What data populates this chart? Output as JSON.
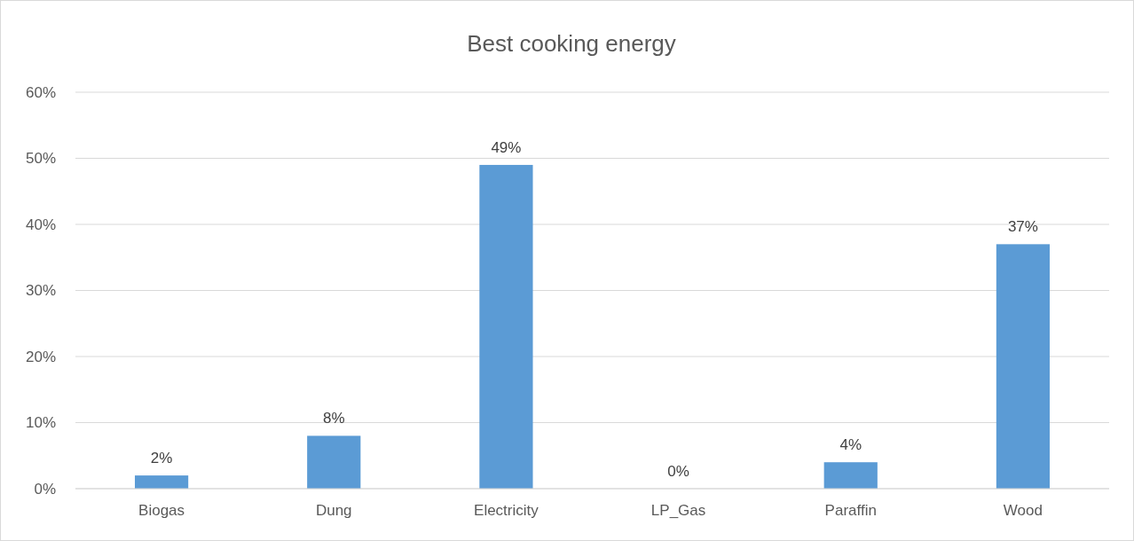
{
  "chart_data": {
    "type": "bar",
    "title": "Best cooking energy",
    "categories": [
      "Biogas",
      "Dung",
      "Electricity",
      "LP_Gas",
      "Paraffin",
      "Wood"
    ],
    "values": [
      2,
      8,
      49,
      0,
      4,
      37
    ],
    "value_labels": [
      "2%",
      "8%",
      "49%",
      "0%",
      "4%",
      "37%"
    ],
    "color": "#5b9bd5",
    "ylim": [
      0,
      60
    ],
    "yticks": [
      {
        "value": 0,
        "label": "0%"
      },
      {
        "value": 10,
        "label": "10%"
      },
      {
        "value": 20,
        "label": "20%"
      },
      {
        "value": 30,
        "label": "30%"
      },
      {
        "value": 40,
        "label": "40%"
      },
      {
        "value": 50,
        "label": "50%"
      },
      {
        "value": 60,
        "label": "60%"
      }
    ],
    "grid": "y"
  }
}
